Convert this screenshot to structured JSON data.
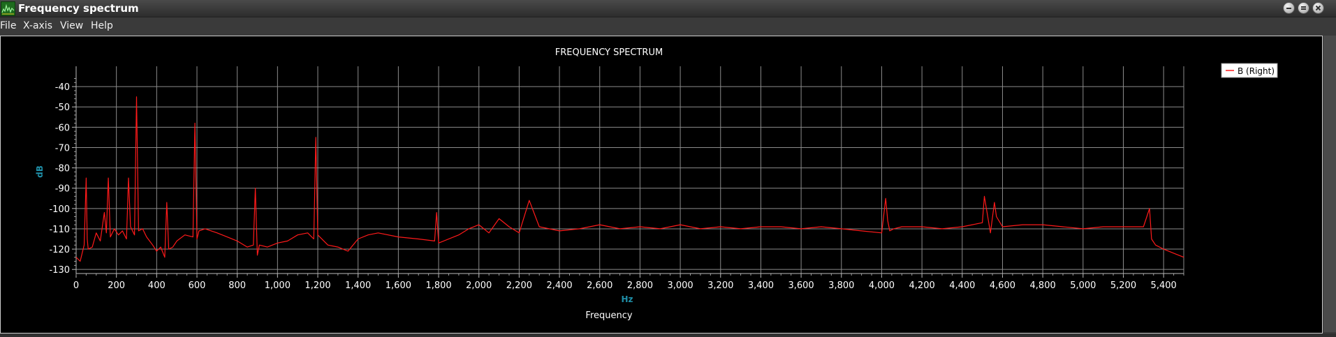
{
  "window": {
    "title": "Frequency spectrum",
    "icon": "spectrum-app-icon",
    "controls": [
      "minimize-icon",
      "restore-icon",
      "close-icon"
    ]
  },
  "menu": {
    "file": "File",
    "xaxis": "X-axis",
    "view": "View",
    "help": "Help"
  },
  "chart_data": {
    "type": "line",
    "title": "FREQUENCY SPECTRUM",
    "xlabel": "Frequency",
    "xunit": "Hz",
    "ylabel": "dB",
    "xlim": [
      0,
      5500
    ],
    "ylim": [
      -132,
      -30
    ],
    "xticks": [
      0,
      200,
      400,
      600,
      800,
      1000,
      1200,
      1400,
      1600,
      1800,
      2000,
      2200,
      2400,
      2600,
      2800,
      3000,
      3200,
      3400,
      3600,
      3800,
      4000,
      4200,
      4400,
      4600,
      4800,
      5000,
      5200,
      5400
    ],
    "xtick_labels": [
      "0",
      "200",
      "400",
      "600",
      "800",
      "1,000",
      "1,200",
      "1,400",
      "1,600",
      "1,800",
      "2,000",
      "2,200",
      "2,400",
      "2,600",
      "2,800",
      "3,000",
      "3,200",
      "3,400",
      "3,600",
      "3,800",
      "4,000",
      "4,200",
      "4,400",
      "4,600",
      "4,800",
      "5,000",
      "5,200",
      "5,400"
    ],
    "yticks": [
      -40,
      -50,
      -60,
      -70,
      -80,
      -90,
      -100,
      -110,
      -120,
      -130
    ],
    "ytick_labels": [
      "-40",
      "-50",
      "-60",
      "-70",
      "-80",
      "-90",
      "-100",
      "-110",
      "-120",
      "-130"
    ],
    "grid": true,
    "legend_position": "top-right",
    "colors": {
      "background": "#000000",
      "grid": "#8c8c8c",
      "series": "#ff1a1a",
      "axis_label": "#1f8fa8",
      "text": "#ffffff"
    },
    "series": [
      {
        "name": "B (Right)",
        "color": "#ff1a1a",
        "x": [
          0,
          20,
          40,
          50,
          55,
          60,
          80,
          100,
          120,
          140,
          150,
          160,
          170,
          190,
          210,
          230,
          250,
          260,
          270,
          290,
          300,
          310,
          330,
          350,
          380,
          400,
          420,
          440,
          450,
          460,
          480,
          500,
          540,
          580,
          590,
          600,
          610,
          640,
          700,
          750,
          800,
          850,
          880,
          890,
          900,
          910,
          950,
          1000,
          1050,
          1100,
          1150,
          1180,
          1190,
          1200,
          1210,
          1250,
          1300,
          1350,
          1400,
          1450,
          1500,
          1600,
          1700,
          1780,
          1790,
          1800,
          1900,
          1950,
          2000,
          2050,
          2100,
          2150,
          2200,
          2250,
          2300,
          2400,
          2500,
          2600,
          2700,
          2800,
          2900,
          3000,
          3100,
          3200,
          3300,
          3400,
          3500,
          3600,
          3700,
          3800,
          3900,
          4000,
          4020,
          4030,
          4040,
          4060,
          4100,
          4200,
          4300,
          4400,
          4450,
          4500,
          4510,
          4520,
          4540,
          4560,
          4570,
          4600,
          4700,
          4800,
          4900,
          5000,
          5100,
          5200,
          5300,
          5330,
          5340,
          5360,
          5400,
          5450,
          5500
        ],
        "y": [
          -124,
          -126,
          -118,
          -85,
          -115,
          -120,
          -119,
          -112,
          -116,
          -102,
          -112,
          -85,
          -114,
          -110,
          -113,
          -111,
          -115,
          -85,
          -109,
          -113,
          -45,
          -111,
          -110,
          -114,
          -118,
          -121,
          -119,
          -124,
          -97,
          -120,
          -119,
          -116,
          -113,
          -114,
          -58,
          -115,
          -111,
          -110,
          -112,
          -114,
          -116,
          -119,
          -118,
          -90,
          -123,
          -118,
          -119,
          -117,
          -116,
          -113,
          -112,
          -115,
          -65,
          -113,
          -114,
          -118,
          -119,
          -121,
          -115,
          -113,
          -112,
          -114,
          -115,
          -116,
          -102,
          -117,
          -113,
          -110,
          -108,
          -112,
          -105,
          -109,
          -112,
          -96,
          -109,
          -111,
          -110,
          -108,
          -110,
          -109,
          -110,
          -108,
          -110,
          -109,
          -110,
          -109,
          -109,
          -110,
          -109,
          -110,
          -111,
          -112,
          -95,
          -106,
          -111,
          -110,
          -109,
          -109,
          -110,
          -109,
          -108,
          -107,
          -94,
          -100,
          -112,
          -97,
          -104,
          -109,
          -108,
          -108,
          -109,
          -110,
          -109,
          -109,
          -109,
          -100,
          -115,
          -118,
          -120,
          -122,
          -124
        ]
      }
    ]
  }
}
